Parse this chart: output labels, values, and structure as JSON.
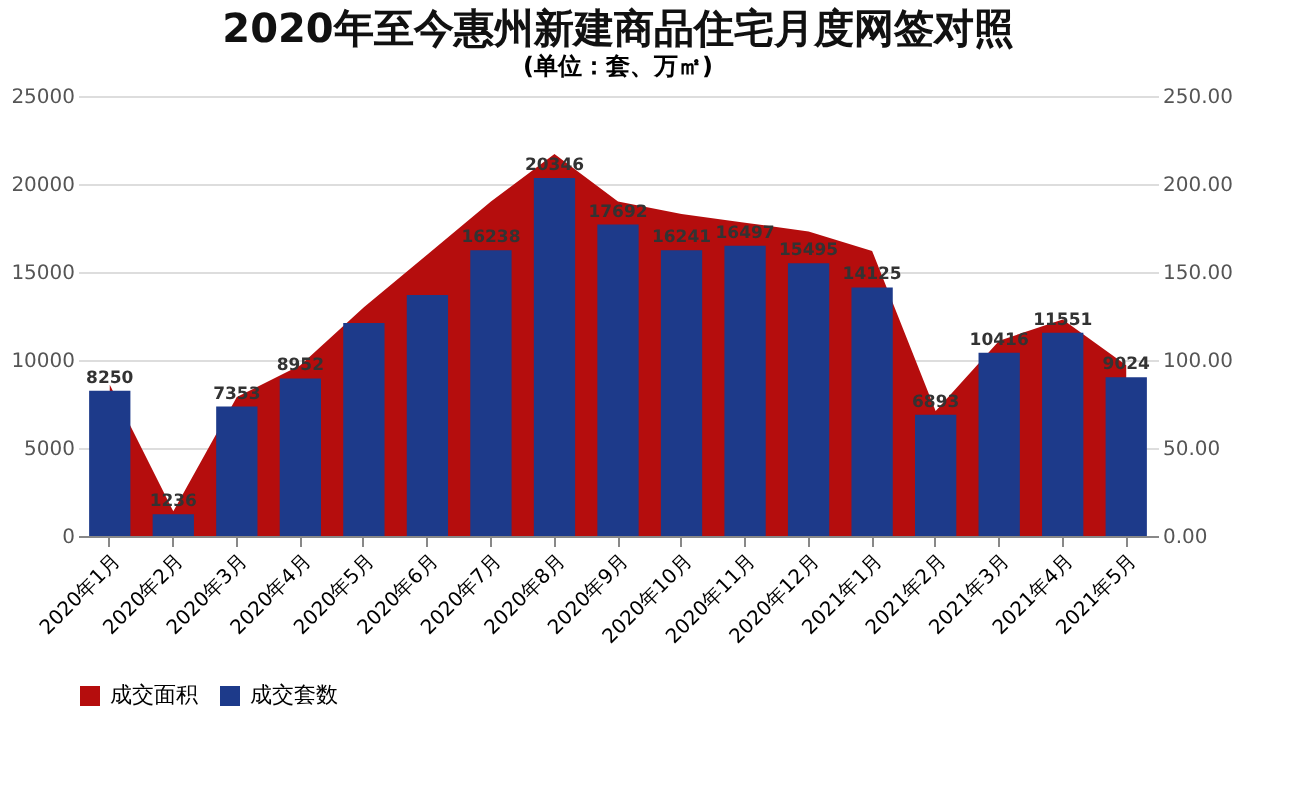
{
  "chart_data": {
    "type": "bar",
    "title": "2020年至今惠州新建商品住宅月度网签对照",
    "subtitle": "(单位：套、万㎡)",
    "categories": [
      "2020年1月",
      "2020年2月",
      "2020年3月",
      "2020年4月",
      "2020年5月",
      "2020年6月",
      "2020年7月",
      "2020年8月",
      "2020年9月",
      "2020年10月",
      "2020年11月",
      "2020年12月",
      "2021年1月",
      "2021年2月",
      "2021年3月",
      "2021年4月",
      "2021年5月"
    ],
    "series": [
      {
        "name": "成交面积",
        "type": "area",
        "axis": "y2",
        "color": "#b50d0d",
        "values": [
          86,
          14,
          79,
          97,
          130,
          160,
          190,
          217,
          190,
          183,
          178,
          173,
          162,
          71,
          111,
          123,
          97
        ]
      },
      {
        "name": "成交套数",
        "color": "#1d3a8a",
        "values": [
          8250,
          1236,
          7353,
          8952,
          12100,
          13700,
          16238,
          20346,
          17692,
          16241,
          16497,
          15495,
          14125,
          6893,
          10416,
          11551,
          9024
        ],
        "value_labels": [
          "8250",
          "1236",
          "7353",
          "8952",
          null,
          null,
          "16238",
          "20346",
          "17692",
          "16241",
          "16497",
          "15495",
          "14125",
          "6893",
          "10416",
          "11551",
          "9024"
        ]
      }
    ],
    "ylim": [
      0,
      25000
    ],
    "yticks": [
      0,
      5000,
      10000,
      15000,
      20000,
      25000
    ],
    "y2lim": [
      0,
      250
    ],
    "y2ticks": [
      {
        "value": 0,
        "label": "0.00"
      },
      {
        "value": 50,
        "label": "50.00"
      },
      {
        "value": 100,
        "label": "100.00"
      },
      {
        "value": 150,
        "label": "150.00"
      },
      {
        "value": 200,
        "label": "200.00"
      },
      {
        "value": 250,
        "label": "250.00"
      }
    ],
    "grid": "y",
    "legend": "bottom"
  }
}
